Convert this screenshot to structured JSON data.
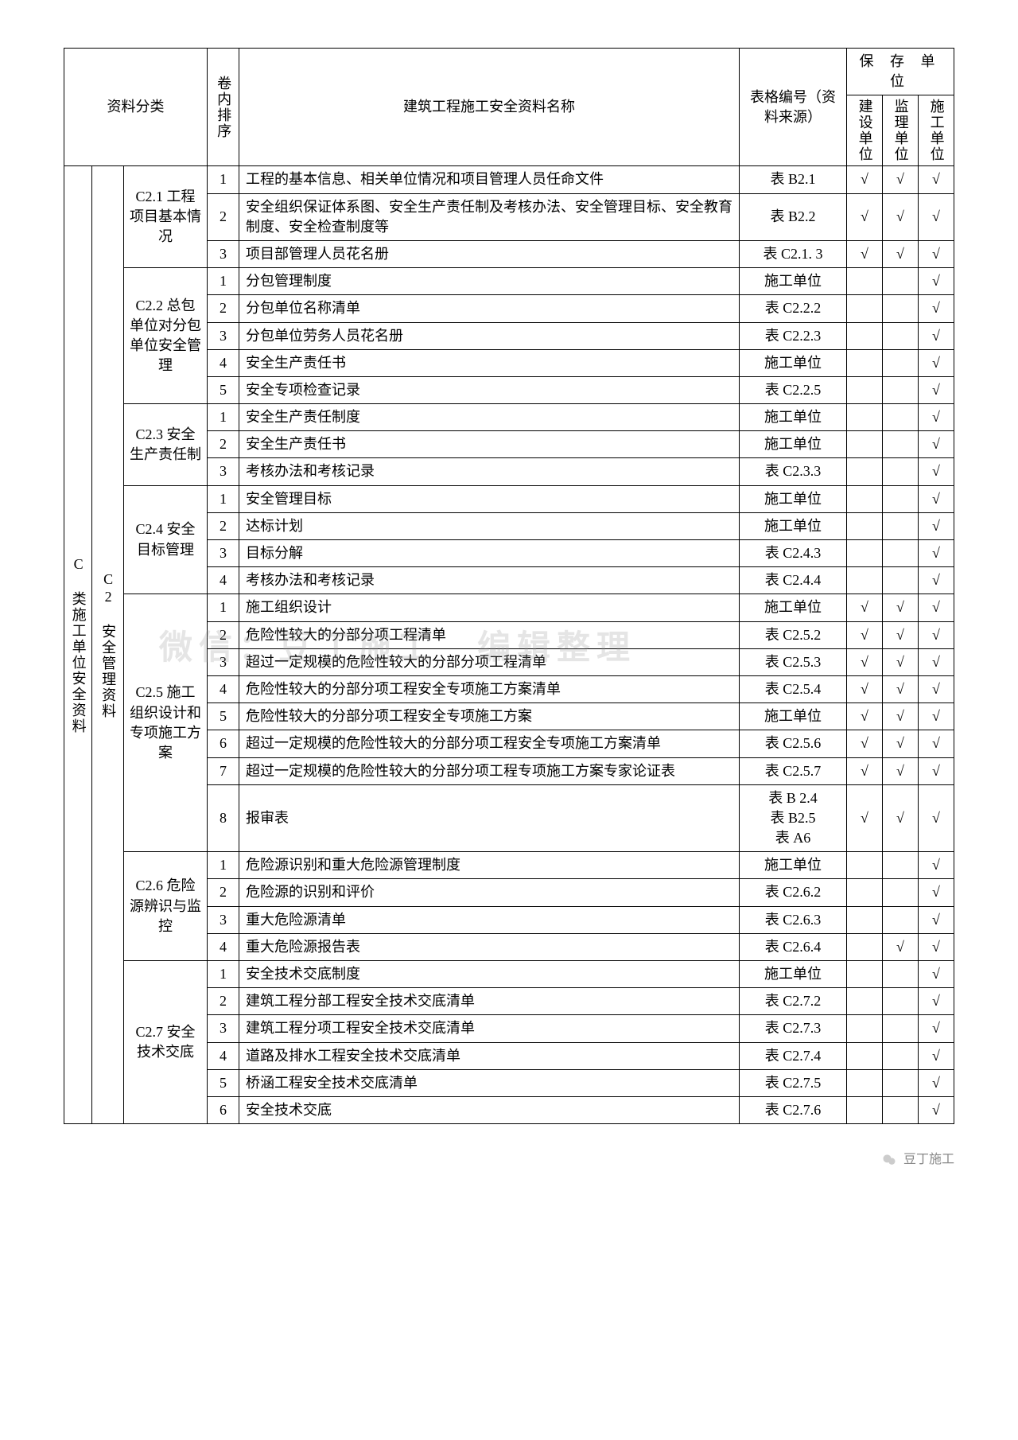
{
  "watermark": "微信：豆丁施工　编辑整理",
  "footer_text": "豆丁施工",
  "headers": {
    "category": "资料分类",
    "seq": "卷内排序",
    "name": "建筑工程施工安全资料名称",
    "source": "表格编号（资料来源）",
    "storage_units": "保 存 单 位",
    "unit_construct": "建设单位",
    "unit_supervise": "监理单位",
    "unit_build": "施工单位"
  },
  "level1": "C 类施工单位安全资料",
  "level2": "C2 安全管理资料",
  "groups": [
    {
      "label": "C2.1 工程项目基本情况",
      "rows": [
        {
          "seq": "1",
          "name": "工程的基本信息、相关单位情况和项目管理人员任命文件",
          "source": "表 B2.1",
          "c1": "√",
          "c2": "√",
          "c3": "√"
        },
        {
          "seq": "2",
          "name": "安全组织保证体系图、安全生产责任制及考核办法、安全管理目标、安全教育制度、安全检查制度等",
          "source": "表 B2.2",
          "c1": "√",
          "c2": "√",
          "c3": "√"
        },
        {
          "seq": "3",
          "name": "项目部管理人员花名册",
          "source": "表 C2.1. 3",
          "c1": "√",
          "c2": "√",
          "c3": "√"
        }
      ]
    },
    {
      "label": "C2.2 总包单位对分包单位安全管理",
      "rows": [
        {
          "seq": "1",
          "name": "分包管理制度",
          "source": "施工单位",
          "c1": "",
          "c2": "",
          "c3": "√"
        },
        {
          "seq": "2",
          "name": "分包单位名称清单",
          "source": "表 C2.2.2",
          "c1": "",
          "c2": "",
          "c3": "√"
        },
        {
          "seq": "3",
          "name": "分包单位劳务人员花名册",
          "source": "表 C2.2.3",
          "c1": "",
          "c2": "",
          "c3": "√"
        },
        {
          "seq": "4",
          "name": "安全生产责任书",
          "source": "施工单位",
          "c1": "",
          "c2": "",
          "c3": "√"
        },
        {
          "seq": "5",
          "name": "安全专项检查记录",
          "source": "表 C2.2.5",
          "c1": "",
          "c2": "",
          "c3": "√"
        }
      ]
    },
    {
      "label": "C2.3 安全生产责任制",
      "rows": [
        {
          "seq": "1",
          "name": "安全生产责任制度",
          "source": "施工单位",
          "c1": "",
          "c2": "",
          "c3": "√"
        },
        {
          "seq": "2",
          "name": "安全生产责任书",
          "source": "施工单位",
          "c1": "",
          "c2": "",
          "c3": "√"
        },
        {
          "seq": "3",
          "name": "考核办法和考核记录",
          "source": "表 C2.3.3",
          "c1": "",
          "c2": "",
          "c3": "√"
        }
      ]
    },
    {
      "label": "C2.4 安全目标管理",
      "rows": [
        {
          "seq": "1",
          "name": "安全管理目标",
          "source": "施工单位",
          "c1": "",
          "c2": "",
          "c3": "√"
        },
        {
          "seq": "2",
          "name": "达标计划",
          "source": "施工单位",
          "c1": "",
          "c2": "",
          "c3": "√"
        },
        {
          "seq": "3",
          "name": "目标分解",
          "source": "表 C2.4.3",
          "c1": "",
          "c2": "",
          "c3": "√"
        },
        {
          "seq": "4",
          "name": "考核办法和考核记录",
          "source": "表 C2.4.4",
          "c1": "",
          "c2": "",
          "c3": "√"
        }
      ]
    },
    {
      "label": "C2.5 施工组织设计和专项施工方案",
      "rows": [
        {
          "seq": "1",
          "name": "施工组织设计",
          "source": "施工单位",
          "c1": "√",
          "c2": "√",
          "c3": "√"
        },
        {
          "seq": "2",
          "name": "危险性较大的分部分项工程清单",
          "source": "表 C2.5.2",
          "c1": "√",
          "c2": "√",
          "c3": "√"
        },
        {
          "seq": "3",
          "name": "超过一定规模的危险性较大的分部分项工程清单",
          "source": "表 C2.5.3",
          "c1": "√",
          "c2": "√",
          "c3": "√"
        },
        {
          "seq": "4",
          "name": "危险性较大的分部分项工程安全专项施工方案清单",
          "source": "表 C2.5.4",
          "c1": "√",
          "c2": "√",
          "c3": "√"
        },
        {
          "seq": "5",
          "name": "危险性较大的分部分项工程安全专项施工方案",
          "source": "施工单位",
          "c1": "√",
          "c2": "√",
          "c3": "√"
        },
        {
          "seq": "6",
          "name": "超过一定规模的危险性较大的分部分项工程安全专项施工方案清单",
          "source": "表 C2.5.6",
          "c1": "√",
          "c2": "√",
          "c3": "√"
        },
        {
          "seq": "7",
          "name": "超过一定规模的危险性较大的分部分项工程专项施工方案专家论证表",
          "source": "表 C2.5.7",
          "c1": "√",
          "c2": "√",
          "c3": "√"
        },
        {
          "seq": "8",
          "name": "报审表",
          "source": "表 B 2.4\n表 B2.5\n表 A6",
          "c1": "√",
          "c2": "√",
          "c3": "√"
        }
      ]
    },
    {
      "label": "C2.6 危险源辨识与监控",
      "rows": [
        {
          "seq": "1",
          "name": "危险源识别和重大危险源管理制度",
          "source": "施工单位",
          "c1": "",
          "c2": "",
          "c3": "√"
        },
        {
          "seq": "2",
          "name": "危险源的识别和评价",
          "source": "表 C2.6.2",
          "c1": "",
          "c2": "",
          "c3": "√"
        },
        {
          "seq": "3",
          "name": "重大危险源清单",
          "source": "表 C2.6.3",
          "c1": "",
          "c2": "",
          "c3": "√"
        },
        {
          "seq": "4",
          "name": "重大危险源报告表",
          "source": "表 C2.6.4",
          "c1": "",
          "c2": "√",
          "c3": "√"
        }
      ]
    },
    {
      "label": "C2.7 安全技术交底",
      "rows": [
        {
          "seq": "1",
          "name": "安全技术交底制度",
          "source": "施工单位",
          "c1": "",
          "c2": "",
          "c3": "√"
        },
        {
          "seq": "2",
          "name": "建筑工程分部工程安全技术交底清单",
          "source": "表 C2.7.2",
          "c1": "",
          "c2": "",
          "c3": "√"
        },
        {
          "seq": "3",
          "name": "建筑工程分项工程安全技术交底清单",
          "source": "表 C2.7.3",
          "c1": "",
          "c2": "",
          "c3": "√"
        },
        {
          "seq": "4",
          "name": "道路及排水工程安全技术交底清单",
          "source": "表 C2.7.4",
          "c1": "",
          "c2": "",
          "c3": "√"
        },
        {
          "seq": "5",
          "name": "桥涵工程安全技术交底清单",
          "source": "表 C2.7.5",
          "c1": "",
          "c2": "",
          "c3": "√"
        },
        {
          "seq": "6",
          "name": "安全技术交底",
          "source": "表 C2.7.6",
          "c1": "",
          "c2": "",
          "c3": "√"
        }
      ]
    }
  ]
}
